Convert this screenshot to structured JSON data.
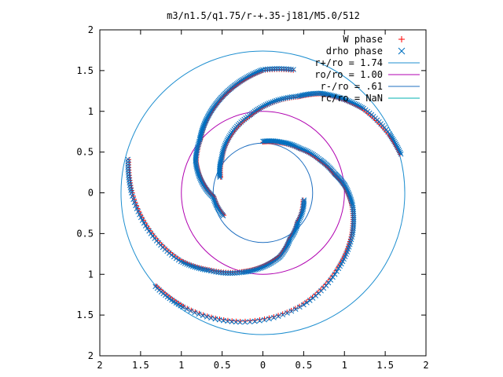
{
  "chart_data": {
    "type": "scatter",
    "title": "m3/n1.5/q1.75/r-+.35-j181/M5.0/512",
    "xlabel": "",
    "ylabel": "",
    "xlim": [
      -2,
      2
    ],
    "ylim": [
      -2,
      2
    ],
    "x_tick_labels": [
      "2",
      "1.5",
      "1",
      "0.5",
      "0",
      "0.5",
      "1",
      "1.5",
      "2"
    ],
    "y_tick_labels": [
      "2",
      "1.5",
      "1",
      "0.5",
      "0",
      "0.5",
      "1",
      "1.5",
      "2"
    ],
    "grid": false,
    "legend_position": "top-right",
    "series": [
      {
        "name": "W phase",
        "marker": "plus",
        "color": "#ff0000",
        "description": "four spiral arms of phase points, same path as drho phase",
        "arms": [
          {
            "r": [
              0.62,
              0.65,
              0.7,
              0.8,
              0.9,
              1.0,
              1.1,
              1.2,
              1.3,
              1.45,
              1.6,
              1.7,
              1.74
            ],
            "theta_deg": [
              90,
              70,
              50,
              30,
              15,
              5,
              -8,
              -25,
              -45,
              -70,
              -100,
              -125,
              -140
            ]
          },
          {
            "r": [
              0.5,
              0.55,
              0.65,
              0.8,
              0.9,
              1.0,
              1.15,
              1.3,
              1.45,
              1.6,
              1.7
            ],
            "theta_deg": [
              -10,
              -40,
              -60,
              -75,
              -90,
              -105,
              -125,
              -140,
              -160,
              -180,
              -195
            ]
          },
          {
            "r": [
              0.55,
              0.6,
              0.75,
              0.9,
              1.0,
              1.1,
              1.2,
              1.3,
              1.4,
              1.5,
              1.55
            ],
            "theta_deg": [
              -150,
              -175,
              -190,
              -205,
              -220,
              -230,
              -240,
              -250,
              -260,
              -270,
              -285
            ]
          },
          {
            "r": [
              0.55,
              0.65,
              0.8,
              0.95,
              1.1,
              1.25,
              1.4,
              1.5,
              1.6,
              1.7,
              1.75
            ],
            "theta_deg": [
              160,
              140,
              120,
              100,
              85,
              70,
              60,
              50,
              40,
              25,
              15
            ]
          }
        ]
      },
      {
        "name": "drho phase",
        "marker": "cross",
        "color": "#0070c0",
        "description": "overlaps W phase arms",
        "arms": [
          {
            "r": [
              0.62,
              0.65,
              0.7,
              0.8,
              0.9,
              1.0,
              1.1,
              1.2,
              1.3,
              1.45,
              1.6,
              1.7,
              1.74
            ],
            "theta_deg": [
              90,
              70,
              50,
              30,
              15,
              5,
              -8,
              -25,
              -45,
              -70,
              -100,
              -125,
              -140
            ]
          },
          {
            "r": [
              0.5,
              0.55,
              0.65,
              0.8,
              0.9,
              1.0,
              1.15,
              1.3,
              1.45,
              1.6,
              1.7
            ],
            "theta_deg": [
              -10,
              -40,
              -60,
              -75,
              -90,
              -105,
              -125,
              -140,
              -160,
              -180,
              -195
            ]
          },
          {
            "r": [
              0.55,
              0.6,
              0.75,
              0.9,
              1.0,
              1.1,
              1.2,
              1.3,
              1.4,
              1.5,
              1.55
            ],
            "theta_deg": [
              -150,
              -175,
              -190,
              -205,
              -220,
              -230,
              -240,
              -250,
              -260,
              -270,
              -285
            ]
          },
          {
            "r": [
              0.55,
              0.65,
              0.8,
              0.95,
              1.1,
              1.25,
              1.4,
              1.5,
              1.6,
              1.7,
              1.75
            ],
            "theta_deg": [
              160,
              140,
              120,
              100,
              85,
              70,
              60,
              50,
              40,
              25,
              15
            ]
          }
        ]
      },
      {
        "name": "r+/ro = 1.74",
        "type": "circle",
        "radius": 1.74,
        "color": "#1f8fd0"
      },
      {
        "name": "ro/ro = 1.00",
        "type": "circle",
        "radius": 1.0,
        "color": "#b000b0"
      },
      {
        "name": "r-/ro = .61",
        "type": "circle",
        "radius": 0.61,
        "color": "#1f6fc0"
      },
      {
        "name": "rc/ro = NaN",
        "type": "circle",
        "radius": null,
        "color": "#00b0b0"
      }
    ]
  }
}
